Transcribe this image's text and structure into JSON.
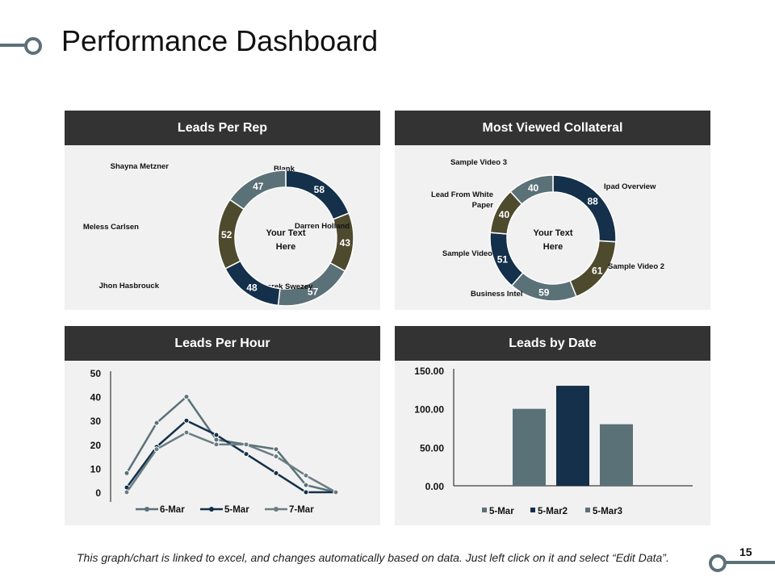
{
  "page": {
    "title": "Performance Dashboard",
    "footer_note": "This graph/chart is linked to excel, and changes automatically based on data. Just left click on it and select “Edit Data”.",
    "page_number": "15"
  },
  "colors": {
    "navy": "#14304a",
    "slate": "#5b7178",
    "olive": "#4e4a2e",
    "header": "#333333",
    "panel": "#f1f1f1"
  },
  "chart_data": [
    {
      "type": "pie",
      "title": "Leads Per Rep",
      "center_text": [
        "Your Text",
        "Here"
      ],
      "slices": [
        {
          "label": "Blank",
          "value": 58,
          "color": "#14304a"
        },
        {
          "label": "Darren Holland",
          "value": 43,
          "color": "#4e4a2e"
        },
        {
          "label": "Derek Swezey",
          "value": 57,
          "color": "#5b7178"
        },
        {
          "label": "Jhon Hasbrouck",
          "value": 48,
          "color": "#14304a"
        },
        {
          "label": "Meless Carlsen",
          "value": 52,
          "color": "#4e4a2e"
        },
        {
          "label": "Shayna Metzner",
          "value": 47,
          "color": "#5b7178"
        }
      ]
    },
    {
      "type": "pie",
      "title": "Most Viewed Collateral",
      "center_text": [
        "Your Text",
        "Here"
      ],
      "slices": [
        {
          "label": "Ipad Overview",
          "value": 88,
          "color": "#14304a"
        },
        {
          "label": "Sample Video 2",
          "value": 61,
          "color": "#4e4a2e"
        },
        {
          "label": "Business Intel",
          "value": 59,
          "color": "#5b7178"
        },
        {
          "label": "Sample Video",
          "value": 51,
          "color": "#14304a"
        },
        {
          "label": "Lead From White Paper",
          "value": 40,
          "color": "#4e4a2e"
        },
        {
          "label": "Sample Video 3",
          "value": 40,
          "color": "#5b7178"
        }
      ]
    },
    {
      "type": "line",
      "title": "Leads Per Hour",
      "ylim": [
        0,
        50
      ],
      "yticks": [
        0,
        10,
        20,
        30,
        40,
        50
      ],
      "x": [
        1,
        2,
        3,
        4,
        5,
        6,
        7,
        8
      ],
      "legend_position": "bottom",
      "series": [
        {
          "name": "6-Mar",
          "color": "#5b7178",
          "values": [
            8,
            29,
            40,
            22,
            20,
            18,
            3,
            0
          ]
        },
        {
          "name": "5-Mar",
          "color": "#14304a",
          "values": [
            2,
            19,
            30,
            24,
            16,
            8,
            0,
            0
          ]
        },
        {
          "name": "7-Mar",
          "color": "#6a7d82",
          "values": [
            0,
            18,
            25,
            20,
            20,
            15,
            7,
            0
          ]
        }
      ]
    },
    {
      "type": "bar",
      "title": "Leads by Date",
      "ylim": [
        0,
        150
      ],
      "yticks": [
        "0.00",
        "50.00",
        "100.00",
        "150.00"
      ],
      "legend_position": "bottom",
      "series": [
        {
          "name": "5-Mar",
          "value": 100,
          "color": "#5b7178"
        },
        {
          "name": "5-Mar2",
          "value": 130,
          "color": "#14304a"
        },
        {
          "name": "5-Mar3",
          "value": 80,
          "color": "#5b7178"
        }
      ]
    }
  ]
}
